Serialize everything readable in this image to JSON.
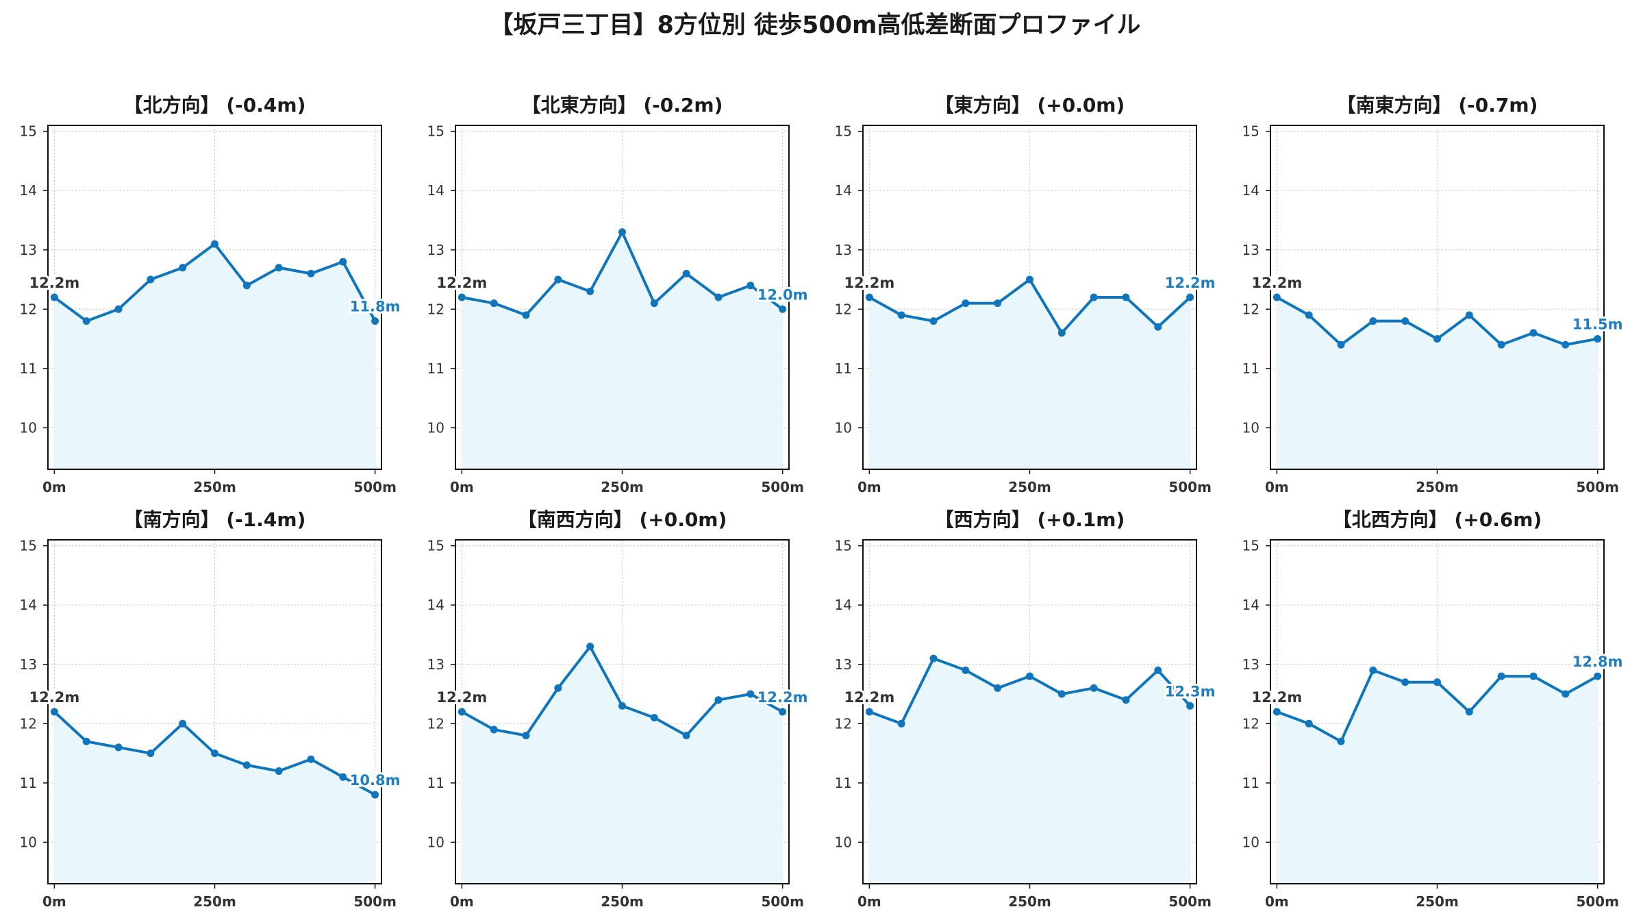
{
  "title": "【坂戸三丁目】8方位別 徒歩500m高低差断面プロファイル",
  "colors": {
    "line": "#0f75bc",
    "fill": "#e9f6fb",
    "grid": "#c8c8c8",
    "start_label": "#333333",
    "end_label": "#1f7ec0"
  },
  "shared_axes": {
    "x_ticks": [
      0,
      250,
      500
    ],
    "x_tick_labels": [
      "0m",
      "250m",
      "500m"
    ],
    "y_ticks": [
      10,
      11,
      12,
      13,
      14,
      15
    ],
    "y_tick_labels": [
      "10",
      "11",
      "12",
      "13",
      "14",
      "15"
    ],
    "xlim": [
      -10,
      510
    ],
    "ylim": [
      9.3,
      15.1
    ],
    "grid": true
  },
  "chart_data": [
    {
      "type": "area",
      "title": "【北方向】 (-0.4m)",
      "x": [
        0,
        50,
        100,
        150,
        200,
        250,
        300,
        350,
        400,
        450,
        500
      ],
      "y": [
        12.2,
        11.8,
        12.0,
        12.5,
        12.7,
        13.1,
        12.4,
        12.7,
        12.6,
        12.8,
        11.8
      ],
      "start_label": "12.2m",
      "end_label": "11.8m"
    },
    {
      "type": "area",
      "title": "【北東方向】 (-0.2m)",
      "x": [
        0,
        50,
        100,
        150,
        200,
        250,
        300,
        350,
        400,
        450,
        500
      ],
      "y": [
        12.2,
        12.1,
        11.9,
        12.5,
        12.3,
        13.3,
        12.1,
        12.6,
        12.2,
        12.4,
        12.0
      ],
      "start_label": "12.2m",
      "end_label": "12.0m"
    },
    {
      "type": "area",
      "title": "【東方向】 (+0.0m)",
      "x": [
        0,
        50,
        100,
        150,
        200,
        250,
        300,
        350,
        400,
        450,
        500
      ],
      "y": [
        12.2,
        11.9,
        11.8,
        12.1,
        12.1,
        12.5,
        11.6,
        12.2,
        12.2,
        11.7,
        12.2
      ],
      "start_label": "12.2m",
      "end_label": "12.2m"
    },
    {
      "type": "area",
      "title": "【南東方向】 (-0.7m)",
      "x": [
        0,
        50,
        100,
        150,
        200,
        250,
        300,
        350,
        400,
        450,
        500
      ],
      "y": [
        12.2,
        11.9,
        11.4,
        11.8,
        11.8,
        11.5,
        11.9,
        11.4,
        11.6,
        11.4,
        11.5
      ],
      "start_label": "12.2m",
      "end_label": "11.5m"
    },
    {
      "type": "area",
      "title": "【南方向】 (-1.4m)",
      "x": [
        0,
        50,
        100,
        150,
        200,
        250,
        300,
        350,
        400,
        450,
        500
      ],
      "y": [
        12.2,
        11.7,
        11.6,
        11.5,
        12.0,
        11.5,
        11.3,
        11.2,
        11.4,
        11.1,
        10.8
      ],
      "start_label": "12.2m",
      "end_label": "10.8m"
    },
    {
      "type": "area",
      "title": "【南西方向】 (+0.0m)",
      "x": [
        0,
        50,
        100,
        150,
        200,
        250,
        300,
        350,
        400,
        450,
        500
      ],
      "y": [
        12.2,
        11.9,
        11.8,
        12.6,
        13.3,
        12.3,
        12.1,
        11.8,
        12.4,
        12.5,
        12.2
      ],
      "start_label": "12.2m",
      "end_label": "12.2m"
    },
    {
      "type": "area",
      "title": "【西方向】 (+0.1m)",
      "x": [
        0,
        50,
        100,
        150,
        200,
        250,
        300,
        350,
        400,
        450,
        500
      ],
      "y": [
        12.2,
        12.0,
        13.1,
        12.9,
        12.6,
        12.8,
        12.5,
        12.6,
        12.4,
        12.9,
        12.3
      ],
      "start_label": "12.2m",
      "end_label": "12.3m"
    },
    {
      "type": "area",
      "title": "【北西方向】 (+0.6m)",
      "x": [
        0,
        50,
        100,
        150,
        200,
        250,
        300,
        350,
        400,
        450,
        500
      ],
      "y": [
        12.2,
        12.0,
        11.7,
        12.9,
        12.7,
        12.7,
        12.2,
        12.8,
        12.8,
        12.5,
        12.8
      ],
      "start_label": "12.2m",
      "end_label": "12.8m"
    }
  ]
}
